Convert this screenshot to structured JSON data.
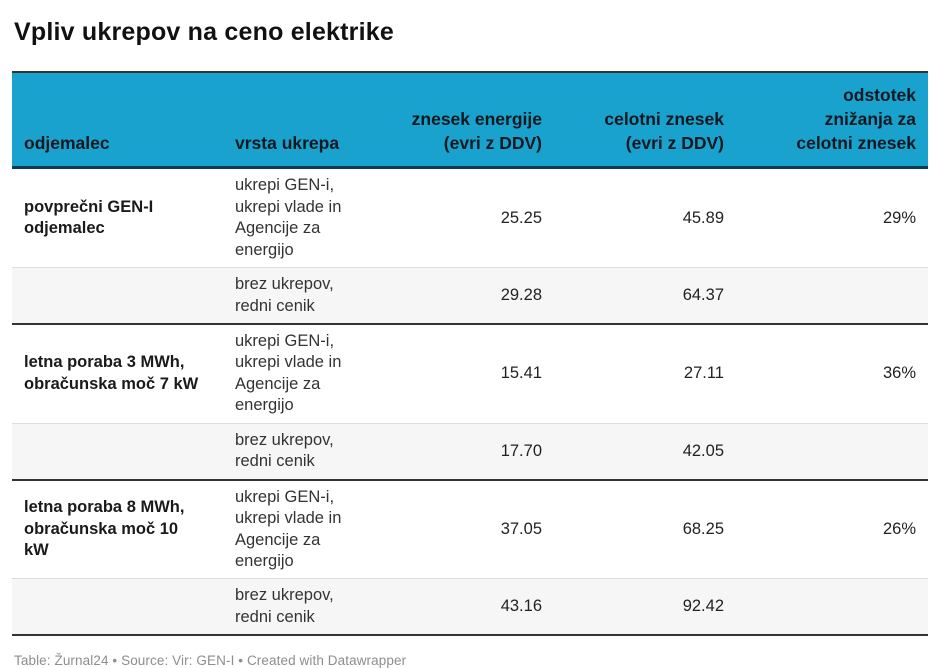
{
  "title": "Vpliv ukrepov na ceno elektrike",
  "theme": {
    "header_bg": "#1aa2ce",
    "header_border": "#0d3c55",
    "table_frame_border": "#333333",
    "shaded_row_bg": "#f6f6f6",
    "light_divider": "#dddddd",
    "footer_text_color": "#8e8e8e"
  },
  "table": {
    "headers": {
      "odjemalec": "odjemalec",
      "vrsta_ukrepa": "vrsta ukrepa",
      "znesek_energije": "znesek energije\n(evri z DDV)",
      "celotni_znesek": "celotni znesek\n(evri z DDV)",
      "odstotek": "odstotek\nznižanja za\ncelotni znesek"
    },
    "rows": [
      {
        "odjemalec": "povprečni GEN-I\nodjemalec",
        "vrsta_ukrepa": "ukrepi GEN-i,\nukrepi vlade in\nAgencije za\nenergijo",
        "znesek_energije": "25.25",
        "celotni_znesek": "45.89",
        "odstotek": "29%"
      },
      {
        "odjemalec": "",
        "vrsta_ukrepa": "brez ukrepov,\nredni cenik",
        "znesek_energije": "29.28",
        "celotni_znesek": "64.37",
        "odstotek": ""
      },
      {
        "odjemalec": "letna poraba 3 MWh,\nobračunska moč 7 kW",
        "vrsta_ukrepa": "ukrepi GEN-i,\nukrepi vlade in\nAgencije za\nenergijo",
        "znesek_energije": "15.41",
        "celotni_znesek": "27.11",
        "odstotek": "36%"
      },
      {
        "odjemalec": "",
        "vrsta_ukrepa": "brez ukrepov,\nredni cenik",
        "znesek_energije": "17.70",
        "celotni_znesek": "42.05",
        "odstotek": ""
      },
      {
        "odjemalec": "letna poraba 8 MWh,\nobračunska moč 10\nkW",
        "vrsta_ukrepa": "ukrepi GEN-i,\nukrepi vlade in\nAgencije za\nenergijo",
        "znesek_energije": "37.05",
        "celotni_znesek": "68.25",
        "odstotek": "26%"
      },
      {
        "odjemalec": "",
        "vrsta_ukrepa": "brez ukrepov,\nredni cenik",
        "znesek_energije": "43.16",
        "celotni_znesek": "92.42",
        "odstotek": ""
      }
    ]
  },
  "footer": {
    "text": "Table: Žurnal24 • Source: Vir: GEN-I • Created with Datawrapper"
  },
  "chart_data": {
    "type": "table",
    "title": "Vpliv ukrepov na ceno elektrike",
    "columns": [
      "odjemalec",
      "vrsta ukrepa",
      "znesek energije (evri z DDV)",
      "celotni znesek (evri z DDV)",
      "odstotek znižanja za celotni znesek"
    ],
    "rows": [
      [
        "povprečni GEN-I odjemalec",
        "ukrepi GEN-i, ukrepi vlade in Agencije za energijo",
        25.25,
        45.89,
        "29%"
      ],
      [
        "",
        "brez ukrepov, redni cenik",
        29.28,
        64.37,
        ""
      ],
      [
        "letna poraba 3 MWh, obračunska moč 7 kW",
        "ukrepi GEN-i, ukrepi vlade in Agencije za energijo",
        15.41,
        27.11,
        "36%"
      ],
      [
        "",
        "brez ukrepov, redni cenik",
        17.7,
        42.05,
        ""
      ],
      [
        "letna poraba 8 MWh, obračunska moč 10 kW",
        "ukrepi GEN-i, ukrepi vlade in Agencije za energijo",
        37.05,
        68.25,
        "26%"
      ],
      [
        "",
        "brez ukrepov, redni cenik",
        43.16,
        92.42,
        ""
      ]
    ],
    "layout": {
      "shaded_rows": [
        1,
        3,
        5
      ],
      "group_separators_after_rows": [
        1,
        3,
        5
      ],
      "numeric_columns_right_aligned": [
        2,
        3,
        4
      ]
    }
  }
}
